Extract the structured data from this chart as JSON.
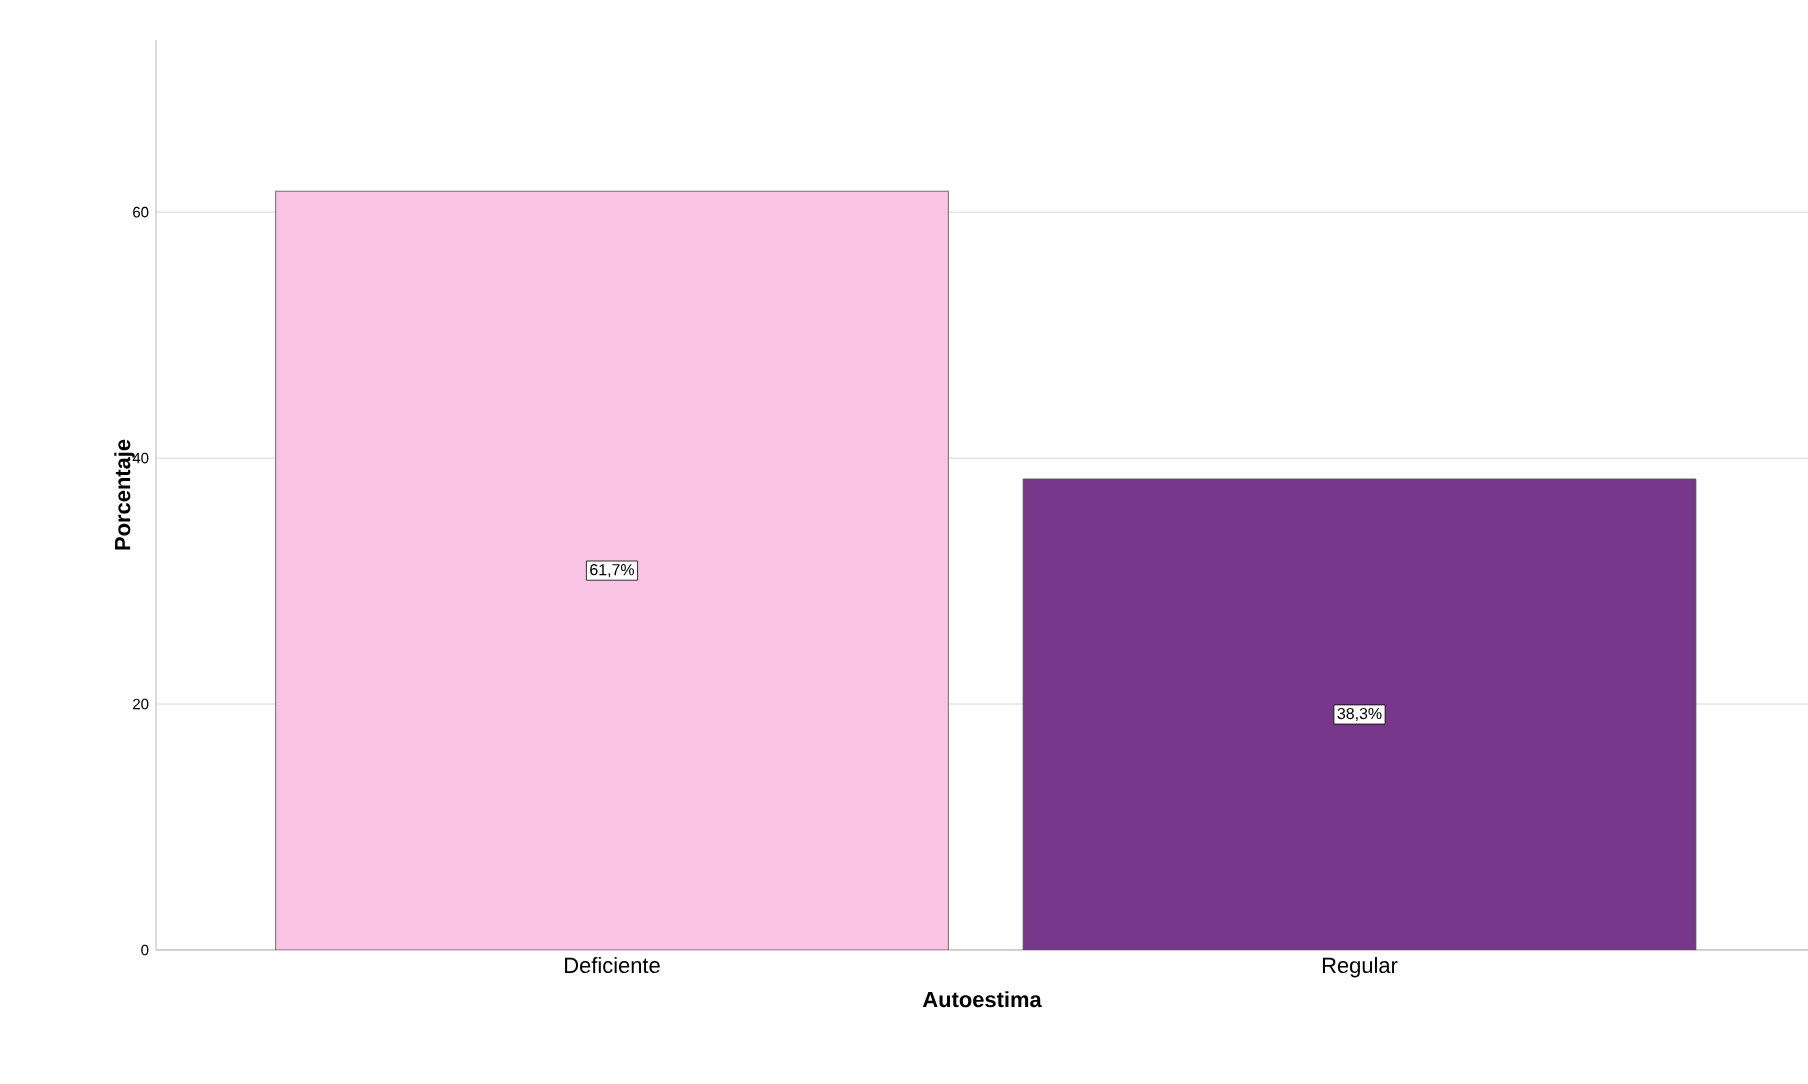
{
  "chart_data": {
    "type": "bar",
    "xlabel": "Autoestima",
    "ylabel": "Porcentaje",
    "categories": [
      "Deficiente",
      "Regular"
    ],
    "values": [
      61.7,
      38.3
    ],
    "colors": [
      "#f9c4e3",
      "#77378b"
    ],
    "value_labels": [
      "61,7%",
      "38,3%"
    ],
    "ylim": [
      0,
      74
    ],
    "yticks": [
      0,
      20,
      40,
      60
    ],
    "grid": "y"
  }
}
